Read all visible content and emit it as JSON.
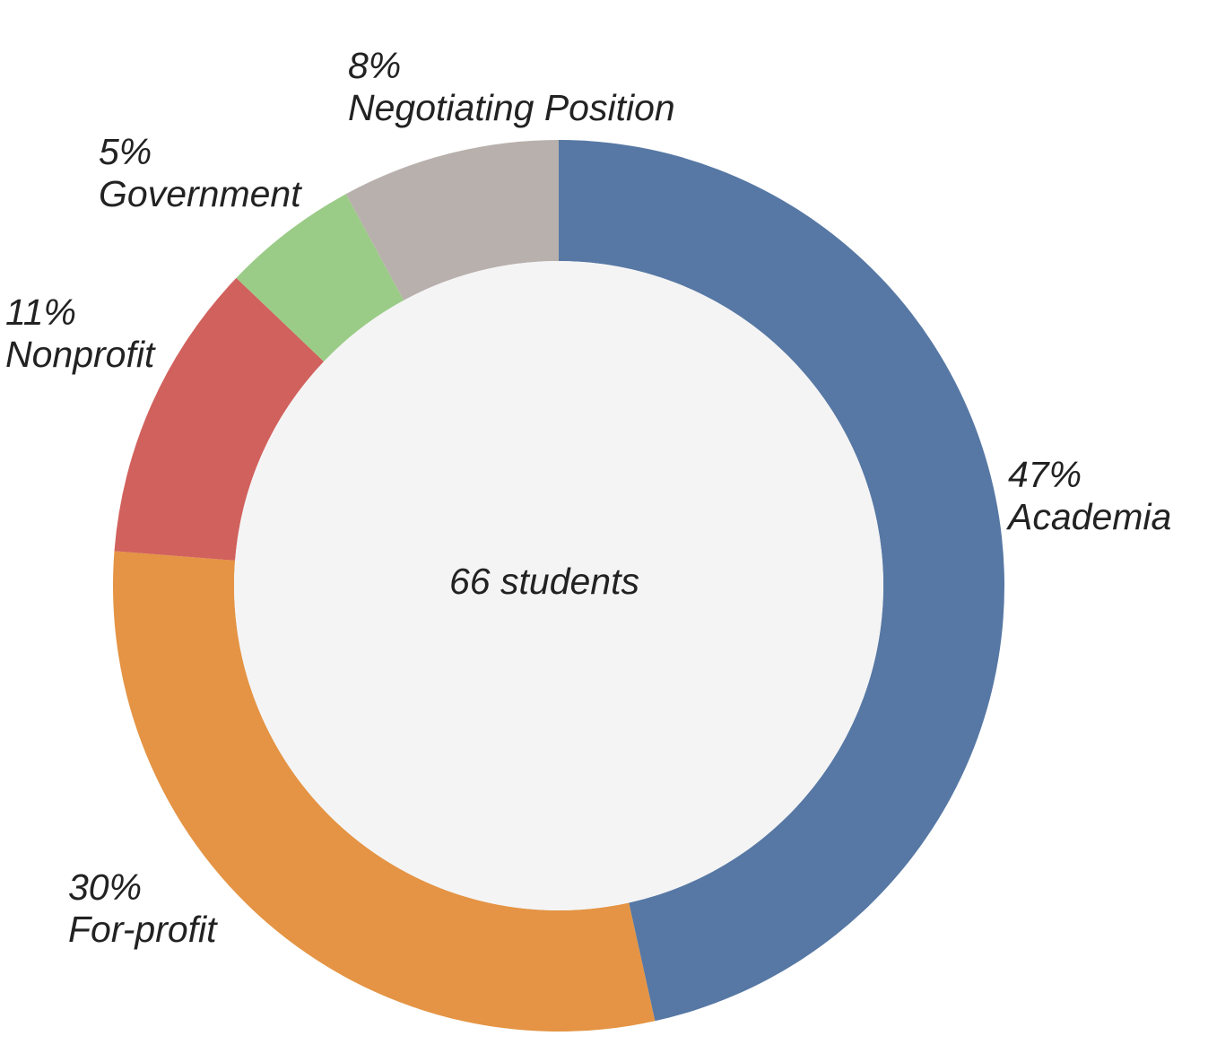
{
  "chart_data": {
    "type": "pie",
    "variant": "donut",
    "center_label": "66 students",
    "slices": [
      {
        "label": "Academia",
        "value": 47,
        "value_label": "47%",
        "color": "#5778a4"
      },
      {
        "label": "For-profit",
        "value": 30,
        "value_label": "30%",
        "color": "#e49444"
      },
      {
        "label": "Nonprofit",
        "value": 11,
        "value_label": "11%",
        "color": "#d1615d"
      },
      {
        "label": "Government",
        "value": 5,
        "value_label": "5%",
        "color": "#9bcc87"
      },
      {
        "label": "Negotiating Position",
        "value": 8,
        "value_label": "8%",
        "color": "#b8b0ac"
      }
    ],
    "hole_color": "#f4f4f5"
  }
}
